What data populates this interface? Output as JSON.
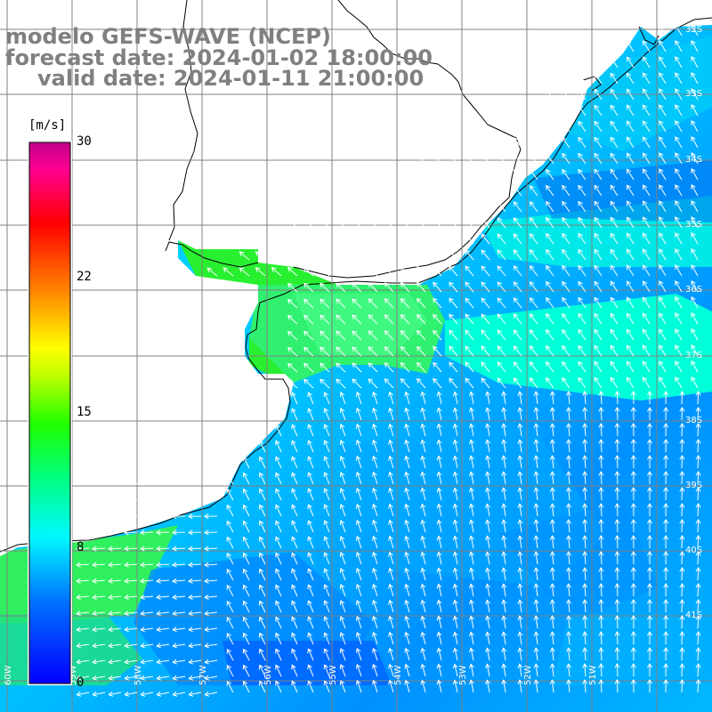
{
  "title": {
    "model": "modelo GEFS-WAVE (NCEP)",
    "forecast": "forecast date: 2024-01-02 18:00:00",
    "valid": "valid date: 2024-01-11 21:00:00"
  },
  "colorbar": {
    "units": "[m/s]",
    "labels": [
      "30",
      "22",
      "15",
      "8",
      "0"
    ],
    "range": [
      0,
      30
    ],
    "colors": [
      "#0000ff",
      "#00a0ff",
      "#00f0f0",
      "#00ff60",
      "#40ff00",
      "#c0ff00",
      "#ffff00",
      "#ff8000",
      "#ff0000",
      "#ff0080",
      "#c00090"
    ]
  },
  "map": {
    "grid_labels_lat": [
      "32S",
      "33S",
      "34S",
      "35S",
      "36S",
      "37S",
      "38S",
      "39S",
      "40S",
      "41S"
    ],
    "grid_labels_lon": [
      "60W",
      "59W",
      "58W",
      "57W",
      "56W",
      "55W",
      "54W",
      "53W",
      "52W",
      "51W"
    ],
    "land_color": "#ffffff",
    "arrow_color": "#ffffff",
    "grid_color": "#808080"
  }
}
